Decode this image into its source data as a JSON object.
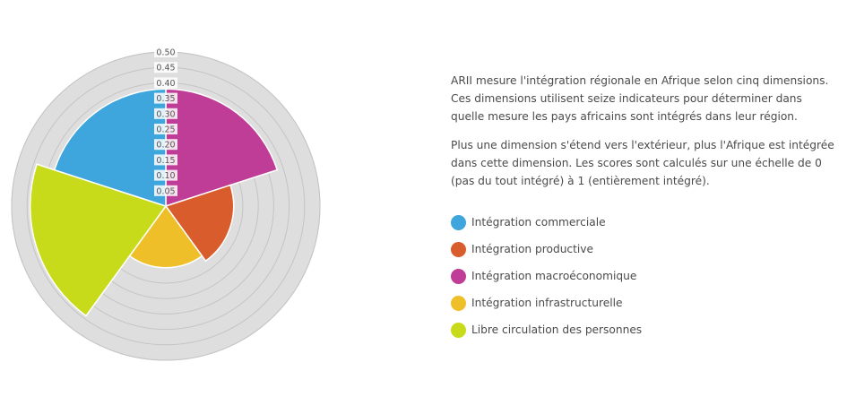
{
  "description": {
    "paragraph1": "ARII mesure l'intégration régionale en Afrique selon cinq dimensions. Ces dimensions utilisent seize indicateurs pour déterminer dans quelle mesure les pays africains sont intégrés dans leur région.",
    "paragraph2": "Plus une dimension s'étend vers l'extérieur, plus l'Afrique est intégrée dans cette dimension. Les scores sont calculés sur une échelle de 0 (pas du tout intégré) à 1 (entièrement intégré)."
  },
  "chart_data": {
    "type": "polar-area",
    "categories": [
      "Intégration commerciale",
      "Intégration productive",
      "Intégration macroéconomique",
      "Intégration infrastructurelle",
      "Libre circulation des personnes"
    ],
    "series": [
      {
        "values": [
          0.38,
          0.22,
          0.38,
          0.2,
          0.44
        ]
      }
    ],
    "sector_order_clockwise_from_top": [
      "Intégration macroéconomique",
      "Intégration productive",
      "Intégration infrastructurelle",
      "Libre circulation des personnes",
      "Intégration commerciale"
    ],
    "colors": {
      "Intégration commerciale": "#3ea6dc",
      "Intégration productive": "#d95c2d",
      "Intégration macroéconomique": "#bf3d96",
      "Intégration infrastructurelle": "#efbf2a",
      "Libre circulation des personnes": "#c8db1a"
    },
    "radial_axis": {
      "min": 0,
      "max": 0.5,
      "tick_labels": [
        "0.05",
        "0.10",
        "0.15",
        "0.20",
        "0.25",
        "0.30",
        "0.35",
        "0.40",
        "0.45",
        "0.50"
      ]
    },
    "grid": true,
    "legend_position": "right"
  },
  "legend_items": [
    {
      "label": "Intégration commerciale",
      "color": "#3ea6dc"
    },
    {
      "label": "Intégration productive",
      "color": "#d95c2d"
    },
    {
      "label": "Intégration macroéconomique",
      "color": "#bf3d96"
    },
    {
      "label": "Intégration infrastructurelle",
      "color": "#efbf2a"
    },
    {
      "label": "Libre circulation des personnes",
      "color": "#c8db1a"
    }
  ]
}
